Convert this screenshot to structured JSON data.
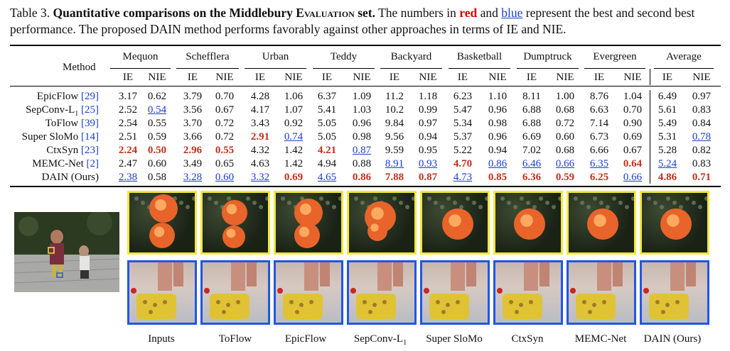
{
  "caption": {
    "prefix": "Table 3.",
    "title": "Quantitative comparisons on the Middlebury",
    "title_sc": "Evaluation",
    "title_end": "set.",
    "t1": "The numbers in",
    "red_word": "red",
    "t2": "and",
    "blue_word": "blue",
    "t3": "represent the best and second best performance. The proposed DAIN method performs favorably against other approaches in terms of IE and NIE."
  },
  "table": {
    "method_header": "Method",
    "datasets": [
      "Mequon",
      "Schefflera",
      "Urban",
      "Teddy",
      "Backyard",
      "Basketball",
      "Dumptruck",
      "Evergreen",
      "Average"
    ],
    "metric_ie": "IE",
    "metric_nie": "NIE",
    "rows": [
      {
        "name": "EpicFlow ",
        "ref": "[29]",
        "values": [
          "3.17",
          "0.62",
          "3.79",
          "0.70",
          "4.28",
          "1.06",
          "6.37",
          "1.09",
          "11.2",
          "1.18",
          "6.23",
          "1.10",
          "8.11",
          "1.00",
          "8.76",
          "1.04",
          "6.49",
          "0.97"
        ],
        "styles": [
          "",
          "",
          "",
          "",
          "",
          "",
          "",
          "",
          "",
          "",
          "",
          "",
          "",
          "",
          "",
          "",
          "",
          ""
        ]
      },
      {
        "name": "SepConv-L",
        "sub": "1",
        "ref": " [25]",
        "values": [
          "2.52",
          "0.54",
          "3.56",
          "0.67",
          "4.17",
          "1.07",
          "5.41",
          "1.03",
          "10.2",
          "0.99",
          "5.47",
          "0.96",
          "6.88",
          "0.68",
          "6.63",
          "0.70",
          "5.61",
          "0.83"
        ],
        "styles": [
          "",
          "s",
          "",
          "",
          "",
          "",
          "",
          "",
          "",
          "",
          "",
          "",
          "",
          "",
          "",
          "",
          "",
          ""
        ]
      },
      {
        "name": "ToFlow ",
        "ref": "[39]",
        "values": [
          "2.54",
          "0.55",
          "3.70",
          "0.72",
          "3.43",
          "0.92",
          "5.05",
          "0.96",
          "9.84",
          "0.97",
          "5.34",
          "0.98",
          "6.88",
          "0.72",
          "7.14",
          "0.90",
          "5.49",
          "0.84"
        ],
        "styles": [
          "",
          "",
          "",
          "",
          "",
          "",
          "",
          "",
          "",
          "",
          "",
          "",
          "",
          "",
          "",
          "",
          "",
          ""
        ]
      },
      {
        "name": "Super SloMo ",
        "ref": "[14]",
        "values": [
          "2.51",
          "0.59",
          "3.66",
          "0.72",
          "2.91",
          "0.74",
          "5.05",
          "0.98",
          "9.56",
          "0.94",
          "5.37",
          "0.96",
          "6.69",
          "0.60",
          "6.73",
          "0.69",
          "5.31",
          "0.78"
        ],
        "styles": [
          "",
          "",
          "",
          "",
          "b",
          "s",
          "",
          "",
          "",
          "",
          "",
          "",
          "",
          "",
          "",
          "",
          "",
          "s"
        ]
      },
      {
        "name": "CtxSyn ",
        "ref": "[23]",
        "values": [
          "2.24",
          "0.50",
          "2.96",
          "0.55",
          "4.32",
          "1.42",
          "4.21",
          "0.87",
          "9.59",
          "0.95",
          "5.22",
          "0.94",
          "7.02",
          "0.68",
          "6.66",
          "0.67",
          "5.28",
          "0.82"
        ],
        "styles": [
          "b",
          "b",
          "b",
          "b",
          "",
          "",
          "b",
          "s",
          "",
          "",
          "",
          "",
          "",
          "",
          "",
          "",
          "",
          ""
        ]
      },
      {
        "name": "MEMC-Net ",
        "ref": "[2]",
        "values": [
          "2.47",
          "0.60",
          "3.49",
          "0.65",
          "4.63",
          "1.42",
          "4.94",
          "0.88",
          "8.91",
          "0.93",
          "4.70",
          "0.86",
          "6.46",
          "0.66",
          "6.35",
          "0.64",
          "5.24",
          "0.83"
        ],
        "styles": [
          "",
          "",
          "",
          "",
          "",
          "",
          "",
          "",
          "s",
          "s",
          "b",
          "s",
          "s",
          "s",
          "s",
          "b",
          "s",
          ""
        ]
      },
      {
        "name": "DAIN (Ours)",
        "ref": "",
        "values": [
          "2.38",
          "0.58",
          "3.28",
          "0.60",
          "3.32",
          "0.69",
          "4.65",
          "0.86",
          "7.88",
          "0.87",
          "4.73",
          "0.85",
          "6.36",
          "0.59",
          "6.25",
          "0.66",
          "4.86",
          "0.71"
        ],
        "styles": [
          "s",
          "",
          "s",
          "s",
          "s",
          "b",
          "s",
          "b",
          "b",
          "b",
          "s",
          "b",
          "b",
          "b",
          "b",
          "s",
          "b",
          "b"
        ]
      }
    ]
  },
  "figure": {
    "labels": [
      "Inputs",
      "ToFlow",
      "EpicFlow",
      "SepConv-L",
      "Super SloMo",
      "CtxSyn",
      "MEMC-Net",
      "DAIN (Ours)"
    ],
    "sepconv_sub": "1",
    "top_border_color": "#f2e83a",
    "bottom_border_color": "#2255e8"
  }
}
